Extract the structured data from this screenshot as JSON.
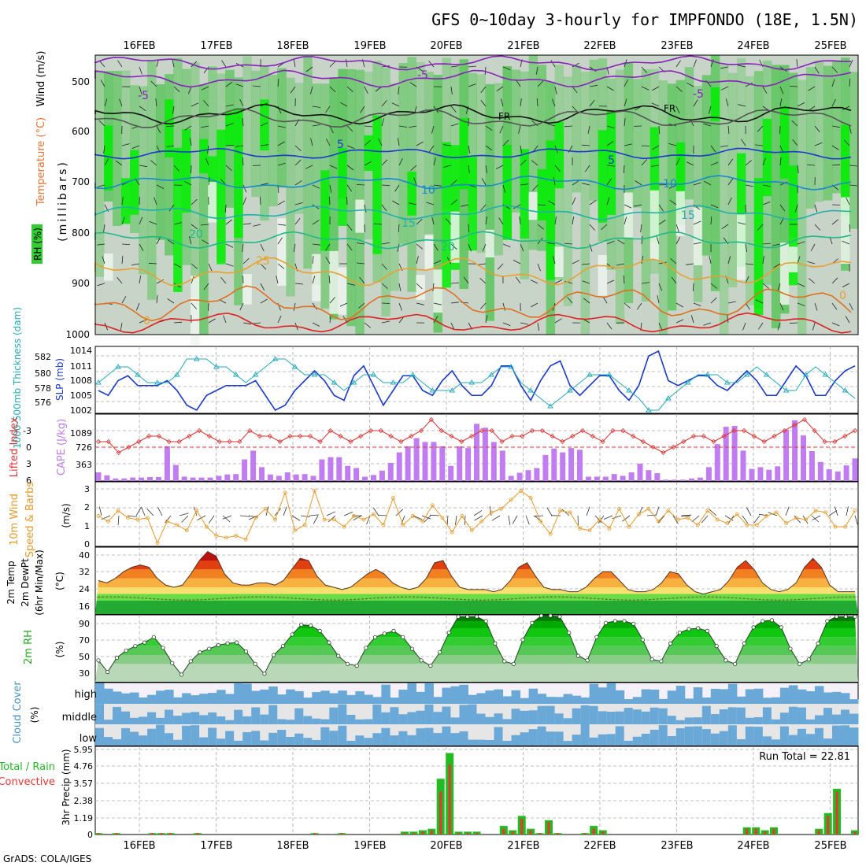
{
  "title": "GFS 0~10day 3-hourly for IMPFONDO (18E, 1.5N)",
  "footer": "GrADS: COLA/IGES",
  "dates": [
    "16FEB",
    "17FEB",
    "18FEB",
    "19FEB",
    "20FEB",
    "21FEB",
    "22FEB",
    "23FEB",
    "24FEB",
    "25FEB"
  ],
  "colors": {
    "rh_green": "#33cc33",
    "rh_bright": "#00ee00",
    "temp_orange": "#e8a030",
    "temp_red": "#dd2222",
    "wind_purple": "#8822bb",
    "slp": "#1a3acc",
    "thick": "#22aabb",
    "cape": "#c07cf0",
    "li": "#dd3333",
    "wind10": "#e89a2a",
    "cloud": "#6aa8d8",
    "precip_total": "#22bb22",
    "precip_conv": "#ee3333"
  },
  "panel1": {
    "ylabel_rh": "RH (%)",
    "ylabel_temp": "Temperature (°C)",
    "ylabel_wind": "Wind (m/s)",
    "ylabel_mb": "(millibars)",
    "yticks": [
      500,
      600,
      700,
      800,
      900,
      1000
    ],
    "contour_labels": [
      "-5",
      "-5",
      "-5",
      "FR",
      "FR",
      "5",
      "5",
      "10",
      "10",
      "15",
      "15",
      "20",
      "20",
      "25",
      "0",
      "0"
    ]
  },
  "panel2": {
    "ylabel_thick": "1000-500mb Thickness (dam)",
    "ylabel_slp": "SLP (mb)",
    "left_ticks": [
      "582",
      "580",
      "578",
      "576"
    ],
    "right_ticks": [
      "1014",
      "1011",
      "1008",
      "1005",
      "1002"
    ]
  },
  "panel3": {
    "ylabel_li": "Lifted Index",
    "ylabel_cape": "CAPE (J/kg)",
    "left_ticks": [
      "-3",
      "0",
      "3",
      "6"
    ],
    "cape_ticks": [
      "1089",
      "726",
      "363"
    ]
  },
  "panel4": {
    "ylabel_wind": "10m Wind",
    "ylabel_speed": "Speed & Barbs",
    "ylabel_unit": "(m/s)",
    "ticks": [
      "3",
      "2",
      "1",
      "0"
    ]
  },
  "panel5": {
    "ylabel_a": "2m Temp",
    "ylabel_b": "2m DewPt",
    "ylabel_c": "(6hr Min/Max)",
    "ylabel_unit": "(°C)",
    "ticks": [
      "40",
      "32",
      "24",
      "16"
    ]
  },
  "panel6": {
    "ylabel": "2m RH",
    "ylabel_unit": "(%)",
    "ticks": [
      "90",
      "70",
      "50",
      "30"
    ]
  },
  "panel7": {
    "ylabel": "Cloud Cover",
    "ylabel_unit": "(%)",
    "levels": [
      "high",
      "middle",
      "low"
    ]
  },
  "panel8": {
    "ylabel_a": "Total / Rain",
    "ylabel_b": "Convective",
    "ylabel_c": "3hr Precip (mm)",
    "ticks": [
      "5.95",
      "4.76",
      "3.57",
      "2.38",
      "1.19",
      "0"
    ],
    "run_total": "Run Total = 22.81"
  },
  "chart_data": [
    {
      "type": "line",
      "panel": "SLP (mb)",
      "x_unit": "3-hourly steps from 15FEB 12Z",
      "ylim": [
        1002,
        1014
      ],
      "values": [
        1006,
        1005,
        1008,
        1009,
        1007,
        1007,
        1007,
        1008,
        1006,
        1003,
        1002,
        1005,
        1006,
        1007,
        1007,
        1007,
        1008,
        1005,
        1002,
        1003,
        1006,
        1008,
        1010,
        1008,
        1005,
        1004,
        1009,
        1011,
        1007,
        1003,
        1006,
        1009,
        1009,
        1006,
        1005,
        1008,
        1010,
        1007,
        1005,
        1005,
        1007,
        1011,
        1011,
        1007,
        1004,
        1008,
        1011,
        1012,
        1007,
        1005,
        1007,
        1009,
        1009,
        1006,
        1004,
        1007,
        1013,
        1014,
        1008,
        1007,
        1008,
        1009,
        1009,
        1007,
        1006,
        1008,
        1010,
        1008,
        1005,
        1005,
        1008,
        1011,
        1009,
        1005,
        1005,
        1008,
        1010,
        1011
      ]
    },
    {
      "type": "line",
      "panel": "1000-500mb Thickness (dam)",
      "ylim": [
        575.5,
        583
      ],
      "values": [
        579,
        580,
        581,
        581,
        580,
        579,
        579,
        579,
        580,
        582,
        582,
        582,
        581,
        581,
        580,
        579,
        580,
        581,
        582,
        582,
        581,
        580,
        580,
        580,
        579,
        578,
        579,
        580,
        580,
        579,
        579,
        579,
        580,
        579,
        578,
        578,
        578,
        579,
        579,
        579,
        580,
        581,
        581,
        579,
        578,
        577,
        576,
        577,
        578,
        579,
        580,
        580,
        580,
        579,
        578,
        577,
        575.5,
        575.5,
        577,
        578,
        579,
        580,
        580,
        580,
        579,
        579,
        580,
        581,
        580,
        579,
        578,
        578,
        580,
        581,
        580,
        579,
        578,
        577
      ]
    },
    {
      "type": "bar",
      "panel": "CAPE (J/kg)",
      "ylim": [
        0,
        1452
      ],
      "values": [
        200,
        130,
        60,
        60,
        80,
        80,
        90,
        90,
        800,
        370,
        100,
        80,
        80,
        80,
        120,
        150,
        160,
        500,
        700,
        320,
        150,
        120,
        200,
        150,
        160,
        120,
        500,
        550,
        550,
        350,
        300,
        100,
        140,
        240,
        420,
        660,
        800,
        990,
        900,
        900,
        800,
        350,
        800,
        760,
        1320,
        1230,
        900,
        700,
        120,
        190,
        250,
        300,
        600,
        750,
        660,
        760,
        720,
        100,
        100,
        100,
        160,
        120,
        200,
        400,
        250,
        180,
        30,
        30,
        30,
        60,
        80,
        320,
        850,
        1250,
        1270,
        700,
        280,
        320,
        260,
        340,
        1180,
        1400,
        1050,
        690,
        440,
        270,
        220,
        360,
        520
      ]
    },
    {
      "type": "line",
      "panel": "Lifted Index",
      "ylim": [
        6,
        -5
      ],
      "values": [
        -1,
        -1,
        1,
        0,
        -1,
        -2,
        -2,
        -1,
        -1,
        -2,
        -3,
        -2,
        -1,
        -1,
        -1,
        -3,
        -2,
        -2,
        -1,
        -2,
        -2,
        -2,
        -1,
        -3,
        -2,
        -1,
        -2,
        -3,
        -3,
        -2,
        -1,
        -2,
        -3,
        -5,
        -3,
        -2,
        -1,
        -2,
        -3,
        -3,
        -1,
        -2,
        -2,
        -3,
        -3,
        -2,
        -1,
        -2,
        -3,
        -2,
        -1,
        -3,
        -3,
        -2,
        -1,
        0,
        1,
        0,
        -1,
        -2,
        -2,
        -1,
        -2,
        -3,
        -3,
        -2,
        -1,
        -2,
        -3,
        -4,
        -5,
        -3,
        -1,
        -1,
        -2,
        -3
      ]
    },
    {
      "type": "line",
      "panel": "10m Wind Speed (m/s)",
      "ylim": [
        0,
        3.5
      ],
      "values": [
        1.6,
        1.3,
        1.9,
        1.5,
        1.4,
        1.5,
        0.1,
        1.3,
        1.1,
        0.8,
        1.9,
        1.0,
        0.5,
        0.4,
        0.5,
        0.3,
        1.5,
        2.0,
        1.4,
        2.9,
        0.8,
        1.1,
        3.0,
        1.4,
        1.4,
        1.0,
        1.6,
        1.4,
        1.7,
        1.1,
        2.6,
        1.1,
        1.6,
        1.3,
        2.2,
        1.5,
        0.7,
        1.6,
        0.8,
        1.3,
        1.8,
        2.0,
        2.5,
        3.0,
        2.6,
        1.3,
        0.6,
        1.9,
        1.8,
        0.9,
        0.8,
        1.4,
        0.9,
        2.0,
        1.0,
        1.7,
        2.0,
        1.3,
        1.9,
        1.4,
        1.5,
        1.1,
        1.9,
        1.4,
        1.2,
        1.7,
        1.1,
        1.1,
        1.6,
        1.8,
        1.2,
        1.5,
        1.4,
        1.9,
        1.8,
        1.0,
        1.0,
        1.9
      ]
    },
    {
      "type": "area",
      "panel": "2m Temp (°C)",
      "ylim": [
        12,
        42
      ],
      "values": [
        27,
        26,
        28,
        31,
        33,
        34,
        33,
        28,
        25,
        24,
        25,
        30,
        36,
        40,
        38,
        30,
        26,
        25,
        25,
        26,
        26,
        25,
        27,
        32,
        37,
        36,
        29,
        25,
        24,
        23,
        24,
        27,
        30,
        32,
        30,
        26,
        24,
        23,
        24,
        28,
        35,
        36,
        29,
        24,
        23,
        23,
        23,
        22,
        23,
        27,
        33,
        35,
        29,
        24,
        23,
        23,
        22,
        22,
        24,
        28,
        31,
        31,
        27,
        23,
        22,
        22,
        23,
        26,
        31,
        30,
        25,
        22,
        21,
        22,
        23,
        27,
        33,
        36,
        32,
        26,
        23,
        22,
        23,
        26,
        33,
        37,
        33,
        25,
        22,
        22,
        22
      ]
    },
    {
      "type": "area",
      "panel": "2m RH (%)",
      "ylim": [
        20,
        95
      ],
      "values": [
        44,
        31,
        47,
        55,
        60,
        64,
        70,
        58,
        41,
        28,
        43,
        53,
        57,
        61,
        63,
        64,
        54,
        40,
        29,
        50,
        60,
        73,
        84,
        83,
        77,
        64,
        49,
        40,
        38,
        58,
        70,
        74,
        77,
        70,
        57,
        44,
        38,
        53,
        75,
        93,
        93,
        93,
        88,
        63,
        43,
        40,
        67,
        86,
        94,
        94,
        93,
        75,
        49,
        44,
        70,
        86,
        88,
        88,
        85,
        67,
        45,
        43,
        63,
        75,
        79,
        80,
        77,
        60,
        44,
        40,
        63,
        81,
        88,
        89,
        81,
        57,
        40,
        45,
        63,
        88,
        93,
        93,
        93
      ]
    },
    {
      "type": "bar",
      "panel": "3hr Precip (mm) Total",
      "ylim": [
        0,
        5.95
      ],
      "values": [
        0.1,
        0,
        0.1,
        0,
        0,
        0,
        0.1,
        0.1,
        0.1,
        0,
        0,
        0.1,
        0,
        0,
        0,
        0,
        0,
        0,
        0,
        0,
        0,
        0,
        0,
        0,
        0.1,
        0,
        0,
        0.1,
        0,
        0,
        0,
        0,
        0,
        0,
        0.2,
        0.2,
        0.3,
        0.4,
        3.9,
        5.7,
        0.2,
        0.2,
        0.2,
        0,
        0,
        0.6,
        0.3,
        1.3,
        0.4,
        0.1,
        1.0,
        0.1,
        0,
        0,
        0.1,
        0.6,
        0.3,
        0,
        0,
        0,
        0,
        0,
        0,
        0,
        0,
        0,
        0,
        0,
        0,
        0,
        0,
        0,
        0.5,
        0.5,
        0.3,
        0.5,
        0,
        0,
        0,
        0,
        0.4,
        1.5,
        3.2,
        0,
        0.3
      ]
    },
    {
      "type": "bar",
      "panel": "3hr Precip (mm) Convective",
      "ylim": [
        0,
        5.95
      ],
      "values": [
        0.1,
        0,
        0.1,
        0,
        0,
        0,
        0.1,
        0.1,
        0.1,
        0,
        0,
        0.1,
        0,
        0,
        0,
        0,
        0,
        0,
        0,
        0,
        0,
        0,
        0,
        0,
        0.1,
        0,
        0,
        0.1,
        0,
        0,
        0,
        0,
        0,
        0,
        0.1,
        0.1,
        0.2,
        0.3,
        3.0,
        4.9,
        0.1,
        0.1,
        0.1,
        0,
        0,
        0.4,
        0.2,
        1.1,
        0.3,
        0.1,
        0.9,
        0.1,
        0,
        0,
        0.1,
        0.4,
        0.2,
        0,
        0,
        0,
        0,
        0,
        0,
        0,
        0,
        0,
        0,
        0,
        0,
        0,
        0,
        0,
        0.4,
        0.4,
        0.2,
        0.4,
        0,
        0,
        0,
        0,
        0.3,
        1.3,
        3.0,
        0,
        0.2
      ]
    }
  ]
}
